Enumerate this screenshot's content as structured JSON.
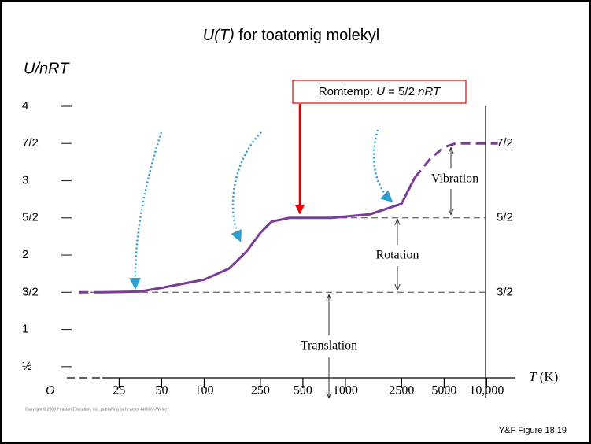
{
  "chart_data": {
    "type": "line",
    "title_parts": [
      "U(T)",
      "  for toatomig molekyl"
    ],
    "ylabel": "U/nRT",
    "xlabel_parts": [
      "T",
      " (K)"
    ],
    "origin_label": "O",
    "xscale": "log",
    "xlim": [
      10,
      15000
    ],
    "xticks": [
      25,
      50,
      100,
      250,
      500,
      1000,
      2500,
      5000,
      {
        "value": 10000,
        "label": "10,000"
      }
    ],
    "ylim": [
      0.35,
      4
    ],
    "yticks": [
      {
        "value": 0.5,
        "label": "½"
      },
      1,
      {
        "value": 1.5,
        "label": "3/2"
      },
      2,
      {
        "value": 2.5,
        "label": "5/2"
      },
      3,
      {
        "value": 3.5,
        "label": "7/2"
      },
      4
    ],
    "y2lim": [
      0.35,
      4
    ],
    "y2ticks": [
      {
        "value": 1.5,
        "label": "3/2"
      },
      {
        "value": 2.5,
        "label": "5/2"
      },
      {
        "value": 3.5,
        "label": "7/2"
      }
    ],
    "color": "#7b3b96",
    "lines": [
      {
        "style": "dashed",
        "x": [
          13,
          19
        ],
        "values": [
          1.5,
          1.5
        ]
      },
      {
        "style": "solid",
        "x": [
          19,
          35,
          50,
          100,
          150,
          200,
          250,
          300,
          400,
          800,
          1500,
          2500,
          2800,
          3100
        ],
        "values": [
          1.5,
          1.51,
          1.56,
          1.67,
          1.82,
          2.05,
          2.3,
          2.45,
          2.5,
          2.5,
          2.55,
          2.69,
          2.88,
          3.04
        ]
      },
      {
        "style": "dashed",
        "x": [
          3100,
          4000,
          5000,
          6000,
          12000
        ],
        "values": [
          3.04,
          3.3,
          3.45,
          3.5,
          3.5
        ]
      }
    ],
    "callout_parts": [
      "Romtemp:  ",
      "U",
      " = 5/2 ",
      "nRT"
    ],
    "annotations": [
      "Vibration",
      "Rotation",
      "Translation"
    ],
    "copyright": "Copyright © 2008 Pearson Education, Inc., publishing as Pearson Addison-Wesley.",
    "figure_ref": "Y&F Figure 18.19"
  }
}
